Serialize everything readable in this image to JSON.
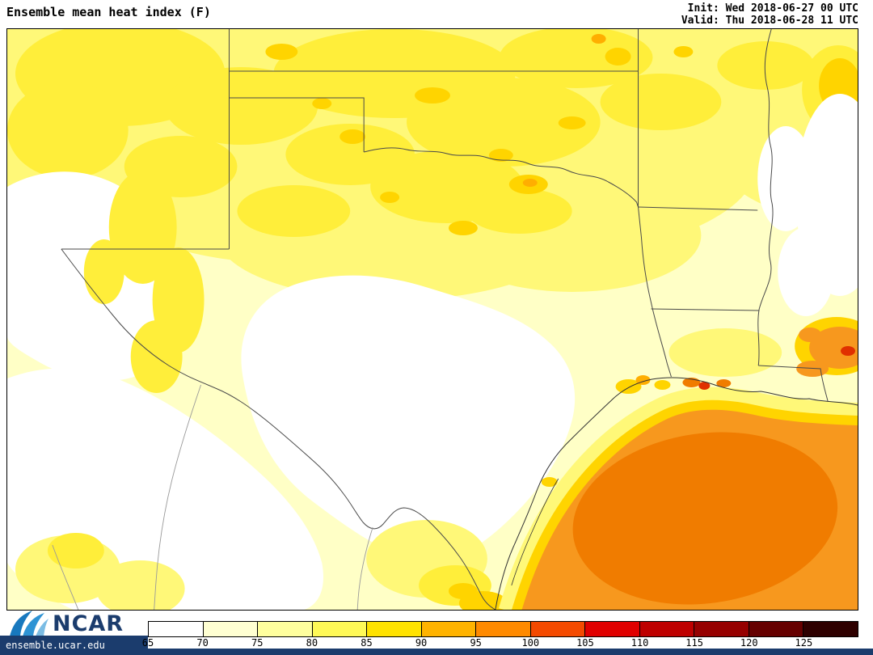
{
  "header": {
    "title": "Ensemble mean heat index (F)",
    "init": "Init: Wed 2018-06-27 00 UTC",
    "valid": "Valid: Thu 2018-06-28 11 UTC"
  },
  "footer": {
    "logo_text": "NCAR",
    "site_url": "ensemble.ucar.edu",
    "brand_color": "#1b3c6d"
  },
  "colorbar": {
    "labels": [
      "65",
      "70",
      "75",
      "80",
      "85",
      "90",
      "95",
      "100",
      "105",
      "110",
      "115",
      "120",
      "125"
    ],
    "segments": [
      "#FFFFFF",
      "#FFFFD2",
      "#FFFF9E",
      "#FFF957",
      "#FFE200",
      "#FFB300",
      "#FF8A00",
      "#F44A00",
      "#E00000",
      "#BE0000",
      "#960000",
      "#660000",
      "#2E0000"
    ]
  },
  "map": {
    "colors": {
      "background": "#FFFFC6",
      "white": "#FFFFFF",
      "light_yellow": "#FFF878",
      "yellow": "#FFEE3A",
      "gold": "#FFD400",
      "amber": "#FFAE00",
      "gulf_orange": "#F7981E",
      "gulf_core": "#F07C00",
      "hot_spot_red": "#E03000",
      "border": "#4A4A4A",
      "coast": "#333333",
      "mexico_border": "#999999"
    }
  }
}
